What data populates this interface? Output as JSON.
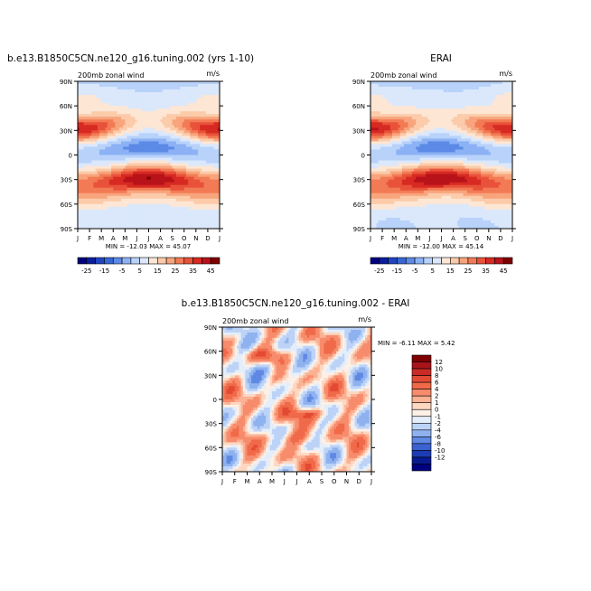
{
  "chart_data": [
    {
      "type": "heatmap",
      "title": "b.e13.B1850C5CN.ne120_g16.tuning.002 (yrs 1-10)",
      "left_label": "200mb zonal wind",
      "right_label": "m/s",
      "x_ticks": [
        "J",
        "F",
        "M",
        "A",
        "M",
        "J",
        "J",
        "A",
        "S",
        "O",
        "N",
        "D",
        "J"
      ],
      "y_ticks": [
        "90N",
        "60N",
        "30N",
        "0",
        "30S",
        "60S",
        "90S"
      ],
      "y_range": [
        -90,
        90
      ],
      "stats_label": "MIN = -12.03  MAX =  45.07",
      "min": -12.03,
      "max": 45.07,
      "field": "model",
      "colorbar": {
        "labels": [
          "-25",
          "-15",
          "-5",
          "5",
          "15",
          "25",
          "35",
          "45"
        ],
        "colors": [
          "#00007f",
          "#0a1e9c",
          "#1f45c2",
          "#3867d6",
          "#5c8ae6",
          "#8cb2f5",
          "#b8d2fa",
          "#dbe8fc",
          "#fde6d4",
          "#fbcbaa",
          "#f8a47c",
          "#f27b55",
          "#e9523a",
          "#d62a22",
          "#b8121a",
          "#7f0000"
        ]
      }
    },
    {
      "type": "heatmap",
      "title": "ERAI",
      "left_label": "200mb zonal wind",
      "right_label": "m/s",
      "x_ticks": [
        "J",
        "F",
        "M",
        "A",
        "M",
        "J",
        "J",
        "A",
        "S",
        "O",
        "N",
        "D",
        "J"
      ],
      "y_ticks": [
        "90N",
        "60N",
        "30N",
        "0",
        "30S",
        "60S",
        "90S"
      ],
      "y_range": [
        -90,
        90
      ],
      "stats_label": "MIN = -12.00  MAX =  45.14",
      "min": -12.0,
      "max": 45.14,
      "field": "obs",
      "colorbar": {
        "labels": [
          "-25",
          "-15",
          "-5",
          "5",
          "15",
          "25",
          "35",
          "45"
        ],
        "colors": [
          "#00007f",
          "#0a1e9c",
          "#1f45c2",
          "#3867d6",
          "#5c8ae6",
          "#8cb2f5",
          "#b8d2fa",
          "#dbe8fc",
          "#fde6d4",
          "#fbcbaa",
          "#f8a47c",
          "#f27b55",
          "#e9523a",
          "#d62a22",
          "#b8121a",
          "#7f0000"
        ]
      }
    },
    {
      "type": "heatmap",
      "title": "b.e13.B1850C5CN.ne120_g16.tuning.002 - ERAI",
      "left_label": "200mb zonal wind",
      "right_label": "m/s",
      "x_ticks": [
        "J",
        "F",
        "M",
        "A",
        "M",
        "J",
        "J",
        "A",
        "S",
        "O",
        "N",
        "D",
        "J"
      ],
      "y_ticks": [
        "90N",
        "60N",
        "30N",
        "0",
        "30S",
        "60S",
        "90S"
      ],
      "y_range": [
        -90,
        90
      ],
      "stats_label": "MIN =  -6.11 MAX =   5.42",
      "min": -6.11,
      "max": 5.42,
      "field": "diff",
      "colorbar": {
        "labels": [
          "12",
          "10",
          "8",
          "6",
          "4",
          "2",
          "1",
          "0",
          "-1",
          "-2",
          "-4",
          "-6",
          "-8",
          "-10",
          "-12"
        ],
        "colors": [
          "#7f0000",
          "#a8141a",
          "#cc2a25",
          "#e34a33",
          "#f06a4a",
          "#f78c6c",
          "#fbb194",
          "#fdd7c1",
          "#fdf0e6",
          "#e4eefb",
          "#bcd3f7",
          "#8fb2ef",
          "#5f89e3",
          "#3a62d1",
          "#1c3cb3",
          "#071a8f",
          "#00007f"
        ]
      }
    }
  ]
}
